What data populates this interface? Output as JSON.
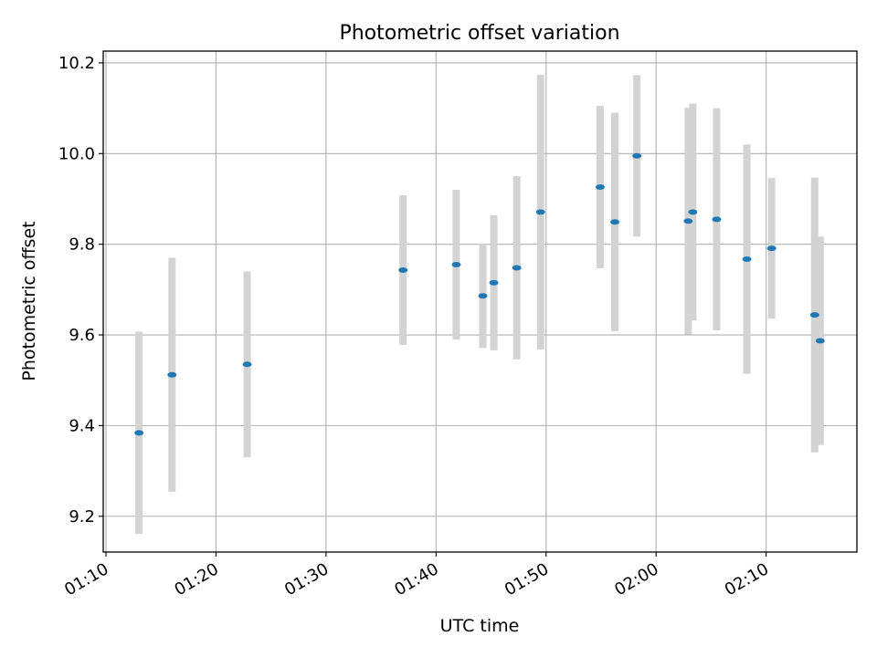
{
  "chart_data": {
    "type": "scatter",
    "title": "Photometric offset variation",
    "xlabel": "UTC time",
    "ylabel": "Photometric offset",
    "x_axis_type": "time",
    "xlim": [
      "01:09:45",
      "02:18:15"
    ],
    "ylim": [
      9.121,
      10.226
    ],
    "x_ticks": [
      "01:10",
      "01:20",
      "01:30",
      "01:40",
      "01:50",
      "02:00",
      "02:10"
    ],
    "y_ticks": [
      9.2,
      9.4,
      9.6,
      9.8,
      10.0,
      10.2
    ],
    "y_tick_labels": [
      "9.2",
      "9.4",
      "9.6",
      "9.8",
      "10.0",
      "10.2"
    ],
    "grid": true,
    "legend": false,
    "marker_color": "#1f77b4",
    "errorbar_color": "#d3d3d3",
    "points": [
      {
        "x": "01:13:00",
        "y": 9.384,
        "err": 0.223
      },
      {
        "x": "01:16:00",
        "y": 9.512,
        "err": 0.258
      },
      {
        "x": "01:22:50",
        "y": 9.535,
        "err": 0.205
      },
      {
        "x": "01:37:00",
        "y": 9.743,
        "err": 0.165
      },
      {
        "x": "01:41:50",
        "y": 9.755,
        "err": 0.165
      },
      {
        "x": "01:44:15",
        "y": 9.686,
        "err": 0.115
      },
      {
        "x": "01:45:15",
        "y": 9.715,
        "err": 0.149
      },
      {
        "x": "01:47:20",
        "y": 9.748,
        "err": 0.202
      },
      {
        "x": "01:49:30",
        "y": 9.871,
        "err": 0.303
      },
      {
        "x": "01:54:55",
        "y": 9.926,
        "err": 0.179
      },
      {
        "x": "01:56:15",
        "y": 9.849,
        "err": 0.241
      },
      {
        "x": "01:58:15",
        "y": 9.995,
        "err": 0.178
      },
      {
        "x": "02:02:55",
        "y": 9.851,
        "err": 0.25
      },
      {
        "x": "02:03:20",
        "y": 9.871,
        "err": 0.239
      },
      {
        "x": "02:05:30",
        "y": 9.855,
        "err": 0.245
      },
      {
        "x": "02:08:15",
        "y": 9.767,
        "err": 0.253
      },
      {
        "x": "02:10:30",
        "y": 9.791,
        "err": 0.155
      },
      {
        "x": "02:14:25",
        "y": 9.644,
        "err": 0.303
      },
      {
        "x": "02:14:55",
        "y": 9.587,
        "err": 0.23
      }
    ]
  }
}
